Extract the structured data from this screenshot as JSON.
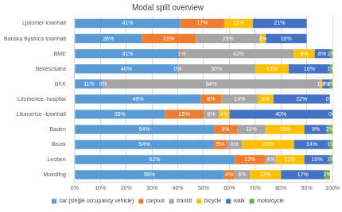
{
  "chart_data": {
    "type": "bar",
    "title": "Modal split overview",
    "orientation": "horizontal",
    "stacked": true,
    "data_labels": true,
    "grid": true,
    "legend": "bottom",
    "categories": [
      "Ljutomer townhall",
      "Banska Bystrica townhall",
      "BME",
      "Békéscsaba",
      "BKK",
      "Litomerice -hospital",
      "Litomerice -townhall",
      "Baden",
      "Bruck",
      "Leoben",
      "Moedling"
    ],
    "xlim": [
      0,
      100
    ],
    "xticks": [
      {
        "value": 0,
        "label": "0%"
      },
      {
        "value": 10,
        "label": "10%"
      },
      {
        "value": 20,
        "label": "20%"
      },
      {
        "value": 30,
        "label": "30%"
      },
      {
        "value": 40,
        "label": "40%"
      },
      {
        "value": 50,
        "label": "50%"
      },
      {
        "value": 60,
        "label": "60%"
      },
      {
        "value": 70,
        "label": "70%"
      },
      {
        "value": 80,
        "label": "80%"
      },
      {
        "value": 90,
        "label": "90%"
      },
      {
        "value": 100,
        "label": "100%"
      }
    ],
    "series": [
      {
        "name": "car (single occupancy vehicle)",
        "color": "#5b9bd5",
        "values": [
          41,
          26,
          41,
          40,
          11,
          49,
          35,
          54,
          54,
          62,
          58
        ],
        "value_labels": [
          "41%",
          "26%",
          "41%",
          "40%",
          "11%",
          "49%",
          "35%",
          "54%",
          "54%",
          "62%",
          "58%"
        ]
      },
      {
        "name": "carpool",
        "color": "#ed7d31",
        "values": [
          17,
          21,
          1,
          0,
          0,
          8,
          15,
          9,
          5,
          12,
          4
        ],
        "value_labels": [
          "17%",
          "21%",
          "1%",
          "0%",
          "0%",
          "8%",
          "15%",
          "9%",
          "5%",
          "12%",
          "4%"
        ]
      },
      {
        "name": "transit",
        "color": "#a5a5a5",
        "values": [
          null,
          25,
          43,
          30,
          84,
          14,
          6,
          11,
          6,
          4,
          6
        ],
        "value_labels": [
          null,
          "25%",
          "43%",
          "30%",
          "84%",
          "14%",
          "6%",
          "11%",
          "6%",
          "4%",
          "6%"
        ]
      },
      {
        "name": "bicycle",
        "color": "#ffc000",
        "values": [
          11,
          2,
          8,
          13,
          1,
          6,
          4,
          15,
          20,
          11,
          12
        ],
        "value_labels": [
          "11%",
          "2%",
          "8%",
          "13%",
          "1%",
          "6%",
          "4%",
          "15%",
          "20%",
          "11%",
          "12%"
        ]
      },
      {
        "name": "walk",
        "color": "#4472c4",
        "values": [
          21,
          16,
          6,
          16,
          3,
          22,
          40,
          9,
          14,
          10,
          17
        ],
        "value_labels": [
          "21%",
          "16%",
          "6%",
          "16%",
          "3%",
          "22%",
          "40%",
          "9%",
          "14%",
          "10%",
          "17%"
        ]
      },
      {
        "name": "motorcycle",
        "color": "#70ad47",
        "values": [
          null,
          null,
          1,
          1,
          1,
          0,
          0,
          2,
          1,
          1,
          2
        ],
        "value_labels": [
          null,
          null,
          "1%",
          "1%",
          "1%",
          "0%",
          "0%",
          "2%",
          "1%",
          "1%",
          "2%"
        ]
      }
    ]
  }
}
